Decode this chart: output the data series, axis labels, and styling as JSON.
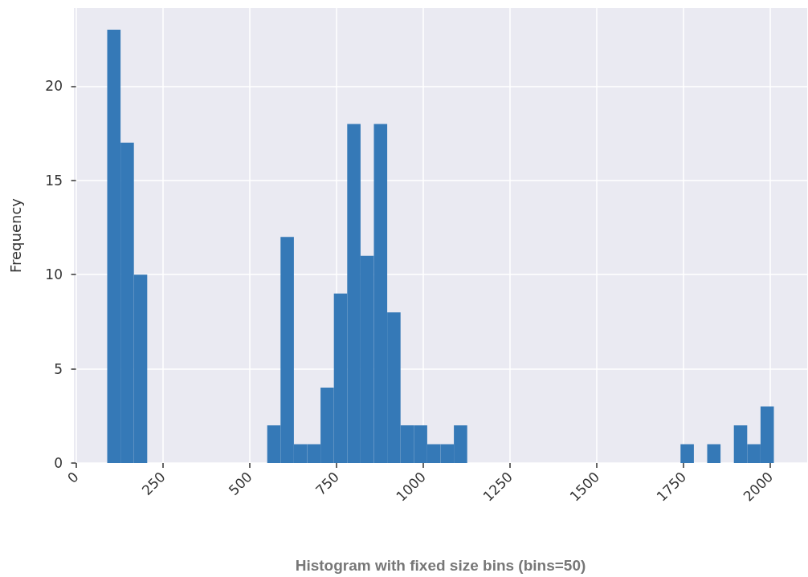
{
  "chart_data": {
    "type": "histogram",
    "xlabel": "Histogram with fixed size bins (bins=50)",
    "ylabel": "Frequency",
    "bins": [
      90,
      128.4,
      166.8,
      205.2,
      243.6,
      282,
      320.4,
      358.8,
      397.2,
      435.6,
      474,
      512.4,
      550.8,
      589.2,
      627.6,
      666,
      704.4,
      742.8,
      781.2,
      819.6,
      858,
      896.4,
      934.8,
      973.2,
      1011.6,
      1050,
      1088.4,
      1126.8,
      1165.2,
      1203.6,
      1242,
      1280.4,
      1318.8,
      1357.2,
      1395.6,
      1434,
      1472.4,
      1510.8,
      1549.2,
      1587.6,
      1626,
      1664.4,
      1702.8,
      1741.2,
      1779.6,
      1818,
      1856.4,
      1894.8,
      1933.2,
      1971.6,
      2010
    ],
    "values": [
      23,
      17,
      10,
      0,
      0,
      0,
      0,
      0,
      0,
      0,
      0,
      0,
      2,
      12,
      1,
      1,
      4,
      9,
      18,
      11,
      18,
      8,
      2,
      2,
      1,
      1,
      2,
      0,
      0,
      0,
      0,
      0,
      0,
      0,
      0,
      0,
      0,
      0,
      0,
      0,
      0,
      0,
      0,
      1,
      0,
      1,
      0,
      2,
      1,
      3
    ],
    "color": "#3579b7",
    "xlim": [
      -6,
      2106
    ],
    "ylim": [
      0,
      24.15
    ],
    "xticks": [
      0,
      250,
      500,
      750,
      1000,
      1250,
      1500,
      1750,
      2000
    ],
    "yticks": [
      0,
      5,
      10,
      15,
      20
    ],
    "grid": true
  }
}
